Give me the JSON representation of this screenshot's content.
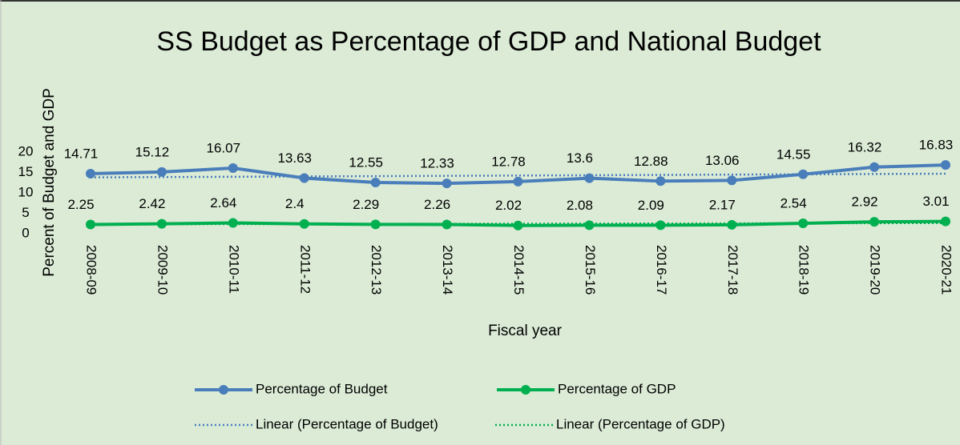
{
  "chart_data": {
    "type": "line",
    "title": "SS Budget as Percentage of GDP and National Budget",
    "x_label": "Fiscal year",
    "y_label": "Percent of Budget and GDP",
    "categories": [
      "2008-09",
      "2009-10",
      "2010-11",
      "2011-12",
      "2012-13",
      "2013-14",
      "2014-15",
      "2015-16",
      "2016-17",
      "2017-18",
      "2018-19",
      "2019-20",
      "2020-21"
    ],
    "series": [
      {
        "name": "Percentage of Budget",
        "color": "#4a7ebb",
        "marker": true,
        "labels": true,
        "values": [
          14.71,
          15.12,
          16.07,
          13.63,
          12.55,
          12.33,
          12.78,
          13.6,
          12.88,
          13.06,
          14.55,
          16.32,
          16.83
        ]
      },
      {
        "name": "Percentage of GDP",
        "color": "#00b050",
        "marker": true,
        "labels": true,
        "values": [
          2.25,
          2.42,
          2.64,
          2.4,
          2.29,
          2.26,
          2.02,
          2.08,
          2.09,
          2.17,
          2.54,
          2.92,
          3.01
        ]
      },
      {
        "name": "Linear (Percentage of Budget)",
        "color": "#4a7ebb",
        "dash": true,
        "values": [
          13.8,
          13.88,
          13.95,
          14.03,
          14.1,
          14.18,
          14.25,
          14.33,
          14.4,
          14.48,
          14.55,
          14.63,
          14.7
        ]
      },
      {
        "name": "Linear (Percentage of GDP)",
        "color": "#00b050",
        "dash": true,
        "values": [
          2.3,
          2.33,
          2.35,
          2.38,
          2.4,
          2.43,
          2.45,
          2.48,
          2.5,
          2.53,
          2.55,
          2.58,
          2.6
        ]
      }
    ],
    "ylim": [
      0,
      20
    ],
    "yticks": [
      0,
      5,
      10,
      15,
      20
    ],
    "grid": false,
    "legend": "bottom"
  }
}
